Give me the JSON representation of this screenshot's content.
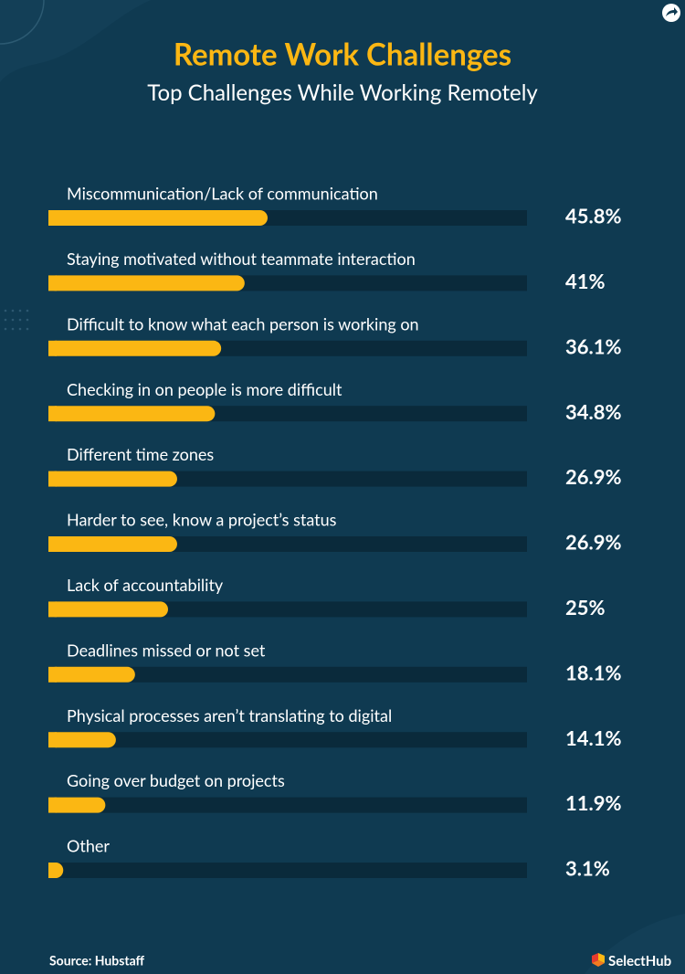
{
  "chart_data": {
    "type": "bar",
    "orientation": "horizontal",
    "title": "Remote Work Challenges",
    "subtitle": "Top Challenges While Working Remotely",
    "categories": [
      "Miscommunication/Lack of communication",
      "Staying motivated without teammate interaction",
      "Difficult to know what each person is working on",
      "Checking in on people is more difficult",
      "Different time zones",
      "Harder to see, know a project’s status",
      "Lack of accountability",
      "Deadlines missed or not set",
      "Physical processes aren’t translating to digital",
      "Going over budget on projects",
      "Other"
    ],
    "values": [
      45.8,
      41,
      36.1,
      34.8,
      26.9,
      26.9,
      25,
      18.1,
      14.1,
      11.9,
      3.1
    ],
    "value_labels": [
      "45.8%",
      "41%",
      "36.1%",
      "34.8%",
      "26.9%",
      "26.9%",
      "25%",
      "18.1%",
      "14.1%",
      "11.9%",
      "3.1%"
    ],
    "xlim": [
      0,
      100
    ],
    "color": "#fbb713",
    "track_color": "#0a2a3b",
    "source": "Source: Hubstaff",
    "brand": "SelectHub"
  }
}
